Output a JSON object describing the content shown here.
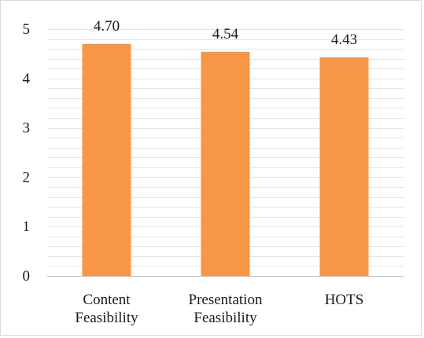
{
  "chart_data": {
    "type": "bar",
    "categories": [
      [
        "Content",
        "Feasibility"
      ],
      [
        "Presentation",
        "Feasibility"
      ],
      [
        "HOTS"
      ]
    ],
    "values": [
      4.7,
      4.54,
      4.43
    ],
    "data_labels": [
      "4.70",
      "4.54",
      "4.43"
    ],
    "y_ticks": [
      "0",
      "1",
      "2",
      "3",
      "4",
      "5"
    ],
    "ylim": [
      0,
      5
    ],
    "grid": true,
    "minor_grid": true,
    "bar_color": "#f79646",
    "gridline_color": "#e4e4e4",
    "axis_color": "#bfbfbf"
  }
}
